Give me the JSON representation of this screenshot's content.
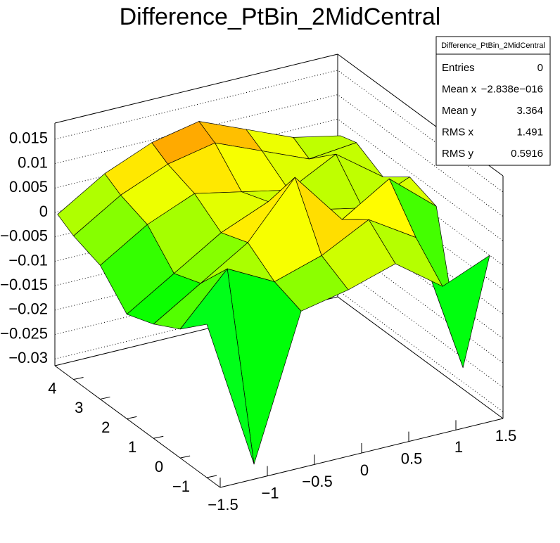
{
  "chart_data": {
    "type": "surface",
    "title": "Difference_PtBin_2MidCentral",
    "x": [
      -1.5,
      -1,
      -0.5,
      0,
      0.5,
      1,
      1.5
    ],
    "y": [
      -1,
      0,
      1,
      2,
      3,
      4,
      4.6
    ],
    "z": [
      [
        0.0,
        -0.031,
        -0.002,
        0.0,
        0.003,
        -0.004,
        0.0
      ],
      [
        -0.005,
        0.005,
        0.0,
        0.003,
        0.008,
        0.002,
        -0.027
      ],
      [
        -0.008,
        -0.002,
        0.004,
        0.015,
        0.004,
        0.01,
        0.002
      ],
      [
        -0.01,
        -0.004,
        0.002,
        0.006,
        0.002,
        0.0,
        0.004
      ],
      [
        -0.004,
        0.002,
        0.006,
        0.004,
        0.002,
        0.007,
        0.0
      ],
      [
        -0.002,
        0.004,
        0.008,
        0.01,
        0.006,
        0.002,
        0.003
      ],
      [
        0.0,
        0.006,
        0.01,
        0.012,
        0.008,
        0.004,
        0.002
      ]
    ],
    "xlim": [
      -1.5,
      1.5
    ],
    "ylim": [
      -1.5,
      4.7
    ],
    "zlim": [
      -0.0314,
      0.0183
    ],
    "xticks": [
      {
        "value": -1.5,
        "label": "−1.5"
      },
      {
        "value": -1,
        "label": "−1"
      },
      {
        "value": -0.5,
        "label": "−0.5"
      },
      0,
      0.5,
      1,
      1.5
    ],
    "yticks": [
      {
        "value": -1,
        "label": "−1"
      },
      0,
      1,
      2,
      3,
      4
    ],
    "zticks": [
      {
        "value": -0.03,
        "label": "−0.03"
      },
      {
        "value": -0.025,
        "label": "−0.025"
      },
      {
        "value": -0.02,
        "label": "−0.02"
      },
      {
        "value": -0.015,
        "label": "−0.015"
      },
      {
        "value": -0.01,
        "label": "−0.01"
      },
      {
        "value": -0.005,
        "label": "−0.005"
      },
      0,
      0.005,
      0.01,
      0.015
    ],
    "grid": true,
    "stats": {
      "title": "Difference_PtBin_2MidCentral",
      "rows": [
        {
          "label": "Entries",
          "value": "0"
        },
        {
          "label": "Mean x",
          "value": "−2.838e−016"
        },
        {
          "label": "Mean y",
          "value": "3.364"
        },
        {
          "label": "RMS x",
          "value": "1.491"
        },
        {
          "label": "RMS y",
          "value": "0.5916"
        }
      ]
    }
  }
}
